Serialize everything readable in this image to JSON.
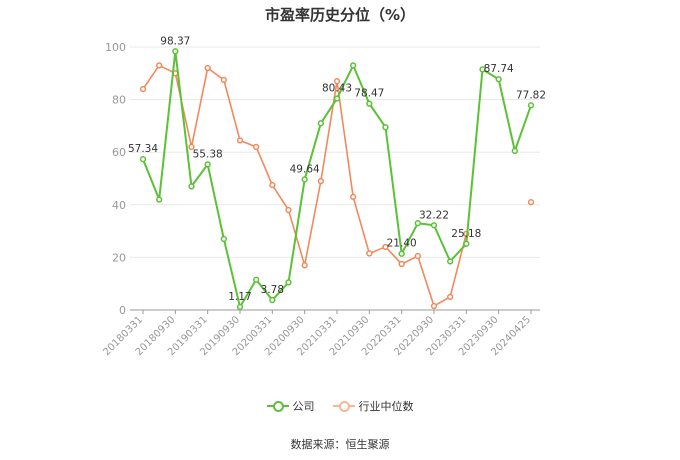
{
  "chart_data": {
    "type": "line",
    "title": "市盈率历史分位（%）",
    "ylim": [
      0,
      100
    ],
    "yticks": [
      0,
      20,
      40,
      60,
      80,
      100
    ],
    "x_tick_labels": [
      "20180331",
      "20180930",
      "20190331",
      "20190930",
      "20200331",
      "20200930",
      "20210331",
      "20210930",
      "20220331",
      "20220930",
      "20230331",
      "20230930",
      "20240425"
    ],
    "series": [
      {
        "name": "公司",
        "color": "#5bc236",
        "values": [
          57.34,
          42.0,
          98.37,
          47.0,
          55.38,
          27.0,
          1.17,
          11.5,
          3.78,
          10.5,
          49.64,
          71.0,
          80.43,
          93.0,
          78.47,
          69.5,
          21.4,
          33.0,
          32.22,
          18.5,
          25.18,
          91.5,
          87.74,
          60.5,
          77.82
        ],
        "labels": {
          "0": "57.34",
          "2": "98.37",
          "4": "55.38",
          "6": "1.17",
          "8": "3.78",
          "10": "49.64",
          "12": "80.43",
          "14": "78.47",
          "16": "21.40",
          "18": "32.22",
          "20": "25.18",
          "22": "87.74",
          "24": "77.82"
        }
      },
      {
        "name": "行业中位数",
        "color": "#f08a5d",
        "values": [
          84.0,
          93.0,
          90.0,
          62.0,
          92.0,
          87.5,
          64.5,
          62.0,
          47.5,
          38.0,
          17.0,
          49.0,
          87.0,
          43.0,
          21.5,
          24.0,
          17.5,
          20.5,
          1.5,
          5.0,
          29.0,
          null,
          null,
          null,
          41.0
        ]
      }
    ]
  },
  "legend": {
    "company": "公司",
    "industry": "行业中位数"
  },
  "source": "数据来源：恒生聚源"
}
